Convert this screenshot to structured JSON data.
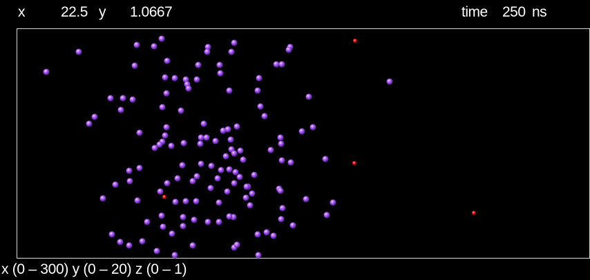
{
  "readout": {
    "x_label": "x",
    "x_value": "22.5",
    "y_label": "y",
    "y_value": "1.0667",
    "time_label": "time",
    "time_value": "250",
    "time_unit": "ns"
  },
  "domain_label": "x (0 – 300) y (0 – 20) z (0 – 1)",
  "colors": {
    "background": "#000000",
    "frame": "#d8d8d8",
    "text": "#ffffff",
    "purple_particle": "#a44ff0",
    "red_particle": "#e01010"
  },
  "icons": [
    "purple-particle-icon",
    "red-particle-icon"
  ]
}
